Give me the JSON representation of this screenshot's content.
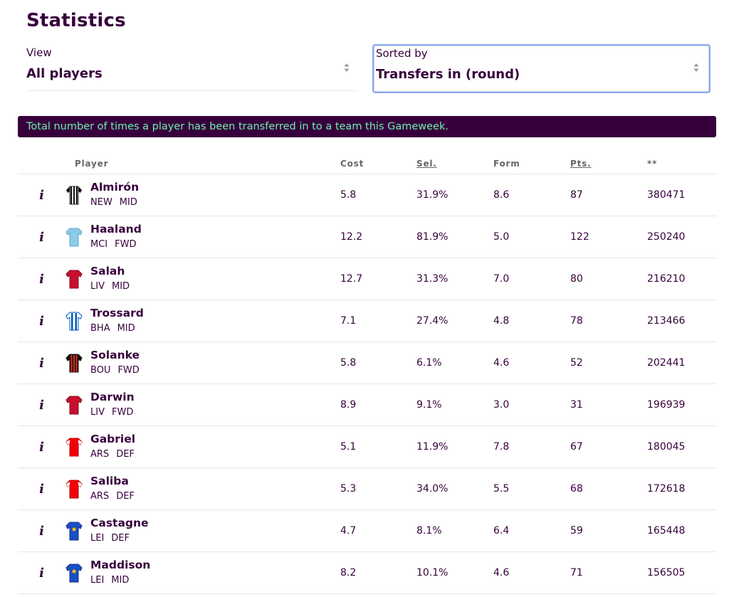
{
  "page": {
    "title": "Statistics"
  },
  "filters": {
    "view": {
      "label": "View",
      "value": "All players"
    },
    "sort": {
      "label": "Sorted by",
      "value": "Transfers in (round)"
    }
  },
  "banner": "Total number of times a player has been transferred in to a team this Gameweek.",
  "table": {
    "columns": [
      "Player",
      "Cost",
      "Sel.",
      "Form",
      "Pts.",
      "**"
    ],
    "info_glyph": "i",
    "rows": [
      {
        "name": "Almirón",
        "team": "NEW",
        "pos": "MID",
        "cost": "5.8",
        "sel": "31.9%",
        "form": "8.6",
        "pts": "87",
        "stat": "380471",
        "kit": "newcastle"
      },
      {
        "name": "Haaland",
        "team": "MCI",
        "pos": "FWD",
        "cost": "12.2",
        "sel": "81.9%",
        "form": "5.0",
        "pts": "122",
        "stat": "250240",
        "kit": "mancity"
      },
      {
        "name": "Salah",
        "team": "LIV",
        "pos": "MID",
        "cost": "12.7",
        "sel": "31.3%",
        "form": "7.0",
        "pts": "80",
        "stat": "216210",
        "kit": "liverpool"
      },
      {
        "name": "Trossard",
        "team": "BHA",
        "pos": "MID",
        "cost": "7.1",
        "sel": "27.4%",
        "form": "4.8",
        "pts": "78",
        "stat": "213466",
        "kit": "brighton"
      },
      {
        "name": "Solanke",
        "team": "BOU",
        "pos": "FWD",
        "cost": "5.8",
        "sel": "6.1%",
        "form": "4.6",
        "pts": "52",
        "stat": "202441",
        "kit": "bournemouth"
      },
      {
        "name": "Darwin",
        "team": "LIV",
        "pos": "FWD",
        "cost": "8.9",
        "sel": "9.1%",
        "form": "3.0",
        "pts": "31",
        "stat": "196939",
        "kit": "liverpool"
      },
      {
        "name": "Gabriel",
        "team": "ARS",
        "pos": "DEF",
        "cost": "5.1",
        "sel": "11.9%",
        "form": "7.8",
        "pts": "67",
        "stat": "180045",
        "kit": "arsenal"
      },
      {
        "name": "Saliba",
        "team": "ARS",
        "pos": "DEF",
        "cost": "5.3",
        "sel": "34.0%",
        "form": "5.5",
        "pts": "68",
        "stat": "172618",
        "kit": "arsenal"
      },
      {
        "name": "Castagne",
        "team": "LEI",
        "pos": "DEF",
        "cost": "4.7",
        "sel": "8.1%",
        "form": "6.4",
        "pts": "59",
        "stat": "165448",
        "kit": "leicester"
      },
      {
        "name": "Maddison",
        "team": "LEI",
        "pos": "MID",
        "cost": "8.2",
        "sel": "10.1%",
        "form": "4.6",
        "pts": "71",
        "stat": "156505",
        "kit": "leicester"
      }
    ]
  },
  "colors": {
    "brand": "#37003c",
    "banner_text": "#6ff0b0",
    "focus_border": "#8ea8f0",
    "divider": "#e6e6e6"
  }
}
